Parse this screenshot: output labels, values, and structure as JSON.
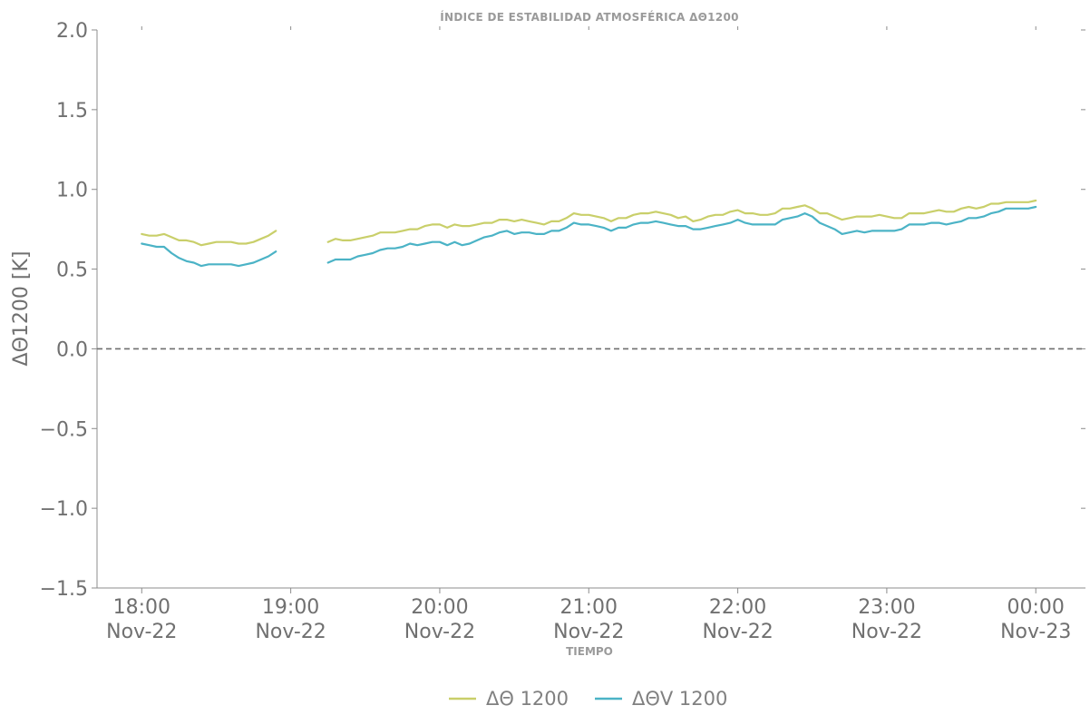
{
  "chart_data": {
    "type": "line",
    "title": "ÍNDICE DE ESTABILIDAD ATMOSFÉRICA ΔΘ1200",
    "xlabel": "TIEMPO",
    "ylabel": "ΔΘ1200 [K]",
    "ylim": [
      -1.5,
      2.0
    ],
    "yticks": [
      -1.5,
      -1.0,
      -0.5,
      0.0,
      0.5,
      1.0,
      1.5,
      2.0
    ],
    "ytick_labels": [
      "−1.5",
      "−1.0",
      "−0.5",
      "0.0",
      "0.5",
      "1.0",
      "1.5",
      "2.0"
    ],
    "xlim": [
      "2023-11-22 17:42",
      "2023-11-23 00:20"
    ],
    "xticks": [
      {
        "time": "2023-11-22 18:00",
        "line1": "18:00",
        "line2": "Nov-22"
      },
      {
        "time": "2023-11-22 19:00",
        "line1": "19:00",
        "line2": "Nov-22"
      },
      {
        "time": "2023-11-22 20:00",
        "line1": "20:00",
        "line2": "Nov-22"
      },
      {
        "time": "2023-11-22 21:00",
        "line1": "21:00",
        "line2": "Nov-22"
      },
      {
        "time": "2023-11-22 22:00",
        "line1": "22:00",
        "line2": "Nov-22"
      },
      {
        "time": "2023-11-22 23:00",
        "line1": "23:00",
        "line2": "Nov-22"
      },
      {
        "time": "2023-11-23 00:00",
        "line1": "00:00",
        "line2": "Nov-23"
      }
    ],
    "reference_line": {
      "y": 0.0,
      "style": "dashed",
      "color": "#6f6f6f"
    },
    "legend_position": "bottom-center",
    "grid": false,
    "series": [
      {
        "name": "ΔΘ 1200",
        "color": "#c9cf6a",
        "segments": [
          {
            "x": [
              "2023-11-22 18:00",
              "2023-11-22 18:03",
              "2023-11-22 18:06",
              "2023-11-22 18:09",
              "2023-11-22 18:12",
              "2023-11-22 18:15",
              "2023-11-22 18:18",
              "2023-11-22 18:21",
              "2023-11-22 18:24",
              "2023-11-22 18:27",
              "2023-11-22 18:30",
              "2023-11-22 18:33",
              "2023-11-22 18:36",
              "2023-11-22 18:39",
              "2023-11-22 18:42",
              "2023-11-22 18:45",
              "2023-11-22 18:48",
              "2023-11-22 18:51",
              "2023-11-22 18:54"
            ],
            "y": [
              0.72,
              0.71,
              0.71,
              0.72,
              0.7,
              0.68,
              0.68,
              0.67,
              0.65,
              0.66,
              0.67,
              0.67,
              0.67,
              0.66,
              0.66,
              0.67,
              0.69,
              0.71,
              0.74
            ]
          },
          {
            "x": [
              "2023-11-22 19:15",
              "2023-11-22 19:18",
              "2023-11-22 19:21",
              "2023-11-22 19:24",
              "2023-11-22 19:27",
              "2023-11-22 19:30",
              "2023-11-22 19:33",
              "2023-11-22 19:36",
              "2023-11-22 19:39",
              "2023-11-22 19:42",
              "2023-11-22 19:45",
              "2023-11-22 19:48",
              "2023-11-22 19:51",
              "2023-11-22 19:54",
              "2023-11-22 19:57",
              "2023-11-22 20:00",
              "2023-11-22 20:03",
              "2023-11-22 20:06",
              "2023-11-22 20:09",
              "2023-11-22 20:12",
              "2023-11-22 20:15",
              "2023-11-22 20:18",
              "2023-11-22 20:21",
              "2023-11-22 20:24",
              "2023-11-22 20:27",
              "2023-11-22 20:30",
              "2023-11-22 20:33",
              "2023-11-22 20:36",
              "2023-11-22 20:39",
              "2023-11-22 20:42",
              "2023-11-22 20:45",
              "2023-11-22 20:48",
              "2023-11-22 20:51",
              "2023-11-22 20:54",
              "2023-11-22 20:57",
              "2023-11-22 21:00",
              "2023-11-22 21:03",
              "2023-11-22 21:06",
              "2023-11-22 21:09",
              "2023-11-22 21:12",
              "2023-11-22 21:15",
              "2023-11-22 21:18",
              "2023-11-22 21:21",
              "2023-11-22 21:24",
              "2023-11-22 21:27",
              "2023-11-22 21:30",
              "2023-11-22 21:33",
              "2023-11-22 21:36",
              "2023-11-22 21:39",
              "2023-11-22 21:42",
              "2023-11-22 21:45",
              "2023-11-22 21:48",
              "2023-11-22 21:51",
              "2023-11-22 21:54",
              "2023-11-22 21:57",
              "2023-11-22 22:00",
              "2023-11-22 22:03",
              "2023-11-22 22:06",
              "2023-11-22 22:09",
              "2023-11-22 22:12",
              "2023-11-22 22:15",
              "2023-11-22 22:18",
              "2023-11-22 22:21",
              "2023-11-22 22:24",
              "2023-11-22 22:27",
              "2023-11-22 22:30",
              "2023-11-22 22:33",
              "2023-11-22 22:36",
              "2023-11-22 22:39",
              "2023-11-22 22:42",
              "2023-11-22 22:45",
              "2023-11-22 22:48",
              "2023-11-22 22:51",
              "2023-11-22 22:54",
              "2023-11-22 22:57",
              "2023-11-22 23:00",
              "2023-11-22 23:03",
              "2023-11-22 23:06",
              "2023-11-22 23:09",
              "2023-11-22 23:12",
              "2023-11-22 23:15",
              "2023-11-22 23:18",
              "2023-11-22 23:21",
              "2023-11-22 23:24",
              "2023-11-22 23:27",
              "2023-11-22 23:30",
              "2023-11-22 23:33",
              "2023-11-22 23:36",
              "2023-11-22 23:39",
              "2023-11-22 23:42",
              "2023-11-22 23:45",
              "2023-11-22 23:48",
              "2023-11-22 23:51",
              "2023-11-22 23:54",
              "2023-11-22 23:57",
              "2023-11-23 00:00"
            ],
            "y": [
              0.67,
              0.69,
              0.68,
              0.68,
              0.69,
              0.7,
              0.71,
              0.73,
              0.73,
              0.73,
              0.74,
              0.75,
              0.75,
              0.77,
              0.78,
              0.78,
              0.76,
              0.78,
              0.77,
              0.77,
              0.78,
              0.79,
              0.79,
              0.81,
              0.81,
              0.8,
              0.81,
              0.8,
              0.79,
              0.78,
              0.8,
              0.8,
              0.82,
              0.85,
              0.84,
              0.84,
              0.83,
              0.82,
              0.8,
              0.82,
              0.82,
              0.84,
              0.85,
              0.85,
              0.86,
              0.85,
              0.84,
              0.82,
              0.83,
              0.8,
              0.81,
              0.83,
              0.84,
              0.84,
              0.86,
              0.87,
              0.85,
              0.85,
              0.84,
              0.84,
              0.85,
              0.88,
              0.88,
              0.89,
              0.9,
              0.88,
              0.85,
              0.85,
              0.83,
              0.81,
              0.82,
              0.83,
              0.83,
              0.83,
              0.84,
              0.83,
              0.82,
              0.82,
              0.85,
              0.85,
              0.85,
              0.86,
              0.87,
              0.86,
              0.86,
              0.88,
              0.89,
              0.88,
              0.89,
              0.91,
              0.91,
              0.92,
              0.92,
              0.92,
              0.92,
              0.93
            ]
          }
        ]
      },
      {
        "name": "ΔΘV 1200",
        "color": "#4bb3c6",
        "segments": [
          {
            "x": [
              "2023-11-22 18:00",
              "2023-11-22 18:03",
              "2023-11-22 18:06",
              "2023-11-22 18:09",
              "2023-11-22 18:12",
              "2023-11-22 18:15",
              "2023-11-22 18:18",
              "2023-11-22 18:21",
              "2023-11-22 18:24",
              "2023-11-22 18:27",
              "2023-11-22 18:30",
              "2023-11-22 18:33",
              "2023-11-22 18:36",
              "2023-11-22 18:39",
              "2023-11-22 18:42",
              "2023-11-22 18:45",
              "2023-11-22 18:48",
              "2023-11-22 18:51",
              "2023-11-22 18:54"
            ],
            "y": [
              0.66,
              0.65,
              0.64,
              0.64,
              0.6,
              0.57,
              0.55,
              0.54,
              0.52,
              0.53,
              0.53,
              0.53,
              0.53,
              0.52,
              0.53,
              0.54,
              0.56,
              0.58,
              0.61
            ]
          },
          {
            "x": [
              "2023-11-22 19:15",
              "2023-11-22 19:18",
              "2023-11-22 19:21",
              "2023-11-22 19:24",
              "2023-11-22 19:27",
              "2023-11-22 19:30",
              "2023-11-22 19:33",
              "2023-11-22 19:36",
              "2023-11-22 19:39",
              "2023-11-22 19:42",
              "2023-11-22 19:45",
              "2023-11-22 19:48",
              "2023-11-22 19:51",
              "2023-11-22 19:54",
              "2023-11-22 19:57",
              "2023-11-22 20:00",
              "2023-11-22 20:03",
              "2023-11-22 20:06",
              "2023-11-22 20:09",
              "2023-11-22 20:12",
              "2023-11-22 20:15",
              "2023-11-22 20:18",
              "2023-11-22 20:21",
              "2023-11-22 20:24",
              "2023-11-22 20:27",
              "2023-11-22 20:30",
              "2023-11-22 20:33",
              "2023-11-22 20:36",
              "2023-11-22 20:39",
              "2023-11-22 20:42",
              "2023-11-22 20:45",
              "2023-11-22 20:48",
              "2023-11-22 20:51",
              "2023-11-22 20:54",
              "2023-11-22 20:57",
              "2023-11-22 21:00",
              "2023-11-22 21:03",
              "2023-11-22 21:06",
              "2023-11-22 21:09",
              "2023-11-22 21:12",
              "2023-11-22 21:15",
              "2023-11-22 21:18",
              "2023-11-22 21:21",
              "2023-11-22 21:24",
              "2023-11-22 21:27",
              "2023-11-22 21:30",
              "2023-11-22 21:33",
              "2023-11-22 21:36",
              "2023-11-22 21:39",
              "2023-11-22 21:42",
              "2023-11-22 21:45",
              "2023-11-22 21:48",
              "2023-11-22 21:51",
              "2023-11-22 21:54",
              "2023-11-22 21:57",
              "2023-11-22 22:00",
              "2023-11-22 22:03",
              "2023-11-22 22:06",
              "2023-11-22 22:09",
              "2023-11-22 22:12",
              "2023-11-22 22:15",
              "2023-11-22 22:18",
              "2023-11-22 22:21",
              "2023-11-22 22:24",
              "2023-11-22 22:27",
              "2023-11-22 22:30",
              "2023-11-22 22:33",
              "2023-11-22 22:36",
              "2023-11-22 22:39",
              "2023-11-22 22:42",
              "2023-11-22 22:45",
              "2023-11-22 22:48",
              "2023-11-22 22:51",
              "2023-11-22 22:54",
              "2023-11-22 22:57",
              "2023-11-22 23:00",
              "2023-11-22 23:03",
              "2023-11-22 23:06",
              "2023-11-22 23:09",
              "2023-11-22 23:12",
              "2023-11-22 23:15",
              "2023-11-22 23:18",
              "2023-11-22 23:21",
              "2023-11-22 23:24",
              "2023-11-22 23:27",
              "2023-11-22 23:30",
              "2023-11-22 23:33",
              "2023-11-22 23:36",
              "2023-11-22 23:39",
              "2023-11-22 23:42",
              "2023-11-22 23:45",
              "2023-11-22 23:48",
              "2023-11-22 23:51",
              "2023-11-22 23:54",
              "2023-11-22 23:57",
              "2023-11-23 00:00"
            ],
            "y": [
              0.54,
              0.56,
              0.56,
              0.56,
              0.58,
              0.59,
              0.6,
              0.62,
              0.63,
              0.63,
              0.64,
              0.66,
              0.65,
              0.66,
              0.67,
              0.67,
              0.65,
              0.67,
              0.65,
              0.66,
              0.68,
              0.7,
              0.71,
              0.73,
              0.74,
              0.72,
              0.73,
              0.73,
              0.72,
              0.72,
              0.74,
              0.74,
              0.76,
              0.79,
              0.78,
              0.78,
              0.77,
              0.76,
              0.74,
              0.76,
              0.76,
              0.78,
              0.79,
              0.79,
              0.8,
              0.79,
              0.78,
              0.77,
              0.77,
              0.75,
              0.75,
              0.76,
              0.77,
              0.78,
              0.79,
              0.81,
              0.79,
              0.78,
              0.78,
              0.78,
              0.78,
              0.81,
              0.82,
              0.83,
              0.85,
              0.83,
              0.79,
              0.77,
              0.75,
              0.72,
              0.73,
              0.74,
              0.73,
              0.74,
              0.74,
              0.74,
              0.74,
              0.75,
              0.78,
              0.78,
              0.78,
              0.79,
              0.79,
              0.78,
              0.79,
              0.8,
              0.82,
              0.82,
              0.83,
              0.85,
              0.86,
              0.88,
              0.88,
              0.88,
              0.88,
              0.89
            ]
          }
        ]
      }
    ]
  }
}
